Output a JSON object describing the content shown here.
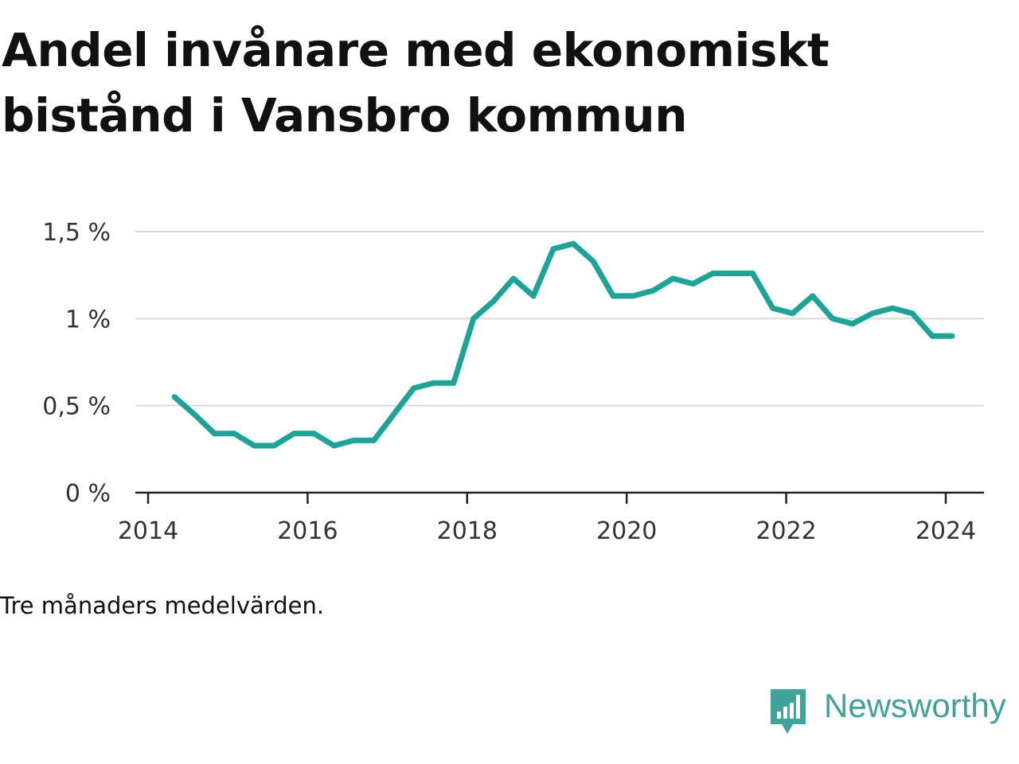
{
  "title": "Andel invånare med ekonomiskt bistånd i Vansbro kommun",
  "caption": "Tre månaders medelvärden.",
  "brand": {
    "name": "Newsworthy",
    "logo_icon": "bar-chart-speech-bubble-icon",
    "color": "#3fa39a"
  },
  "chart_data": {
    "type": "line",
    "title": "Andel invånare med ekonomiskt bistånd i Vansbro kommun",
    "xlabel": "",
    "ylabel": "",
    "ylim": [
      0,
      1.5
    ],
    "yticks": [
      0,
      0.5,
      1,
      1.5
    ],
    "ytick_labels": [
      "0 %",
      "0,5 %",
      "1 %",
      "1,5 %"
    ],
    "xlim": [
      2014,
      2024.25
    ],
    "xticks": [
      2014,
      2016,
      2018,
      2020,
      2022,
      2024
    ],
    "xtick_labels": [
      "2014",
      "2016",
      "2018",
      "2020",
      "2022",
      "2024"
    ],
    "grid": true,
    "line_color": "#1aa596",
    "series": [
      {
        "name": "",
        "x": [
          2014.33,
          2014.58,
          2014.83,
          2015.08,
          2015.33,
          2015.58,
          2015.83,
          2016.08,
          2016.33,
          2016.58,
          2016.83,
          2017.08,
          2017.33,
          2017.58,
          2017.83,
          2018.08,
          2018.33,
          2018.58,
          2018.83,
          2019.08,
          2019.33,
          2019.58,
          2019.83,
          2020.08,
          2020.33,
          2020.58,
          2020.83,
          2021.08,
          2021.33,
          2021.58,
          2021.83,
          2022.08,
          2022.33,
          2022.58,
          2022.83,
          2023.08,
          2023.33,
          2023.58,
          2023.83,
          2024.08
        ],
        "values": [
          0.55,
          0.45,
          0.34,
          0.34,
          0.27,
          0.27,
          0.34,
          0.34,
          0.27,
          0.3,
          0.3,
          0.45,
          0.6,
          0.63,
          0.63,
          1.0,
          1.1,
          1.23,
          1.13,
          1.4,
          1.43,
          1.33,
          1.13,
          1.13,
          1.16,
          1.23,
          1.2,
          1.26,
          1.26,
          1.26,
          1.06,
          1.03,
          1.13,
          1.0,
          0.97,
          1.03,
          1.06,
          1.03,
          0.9,
          0.9
        ]
      }
    ]
  }
}
